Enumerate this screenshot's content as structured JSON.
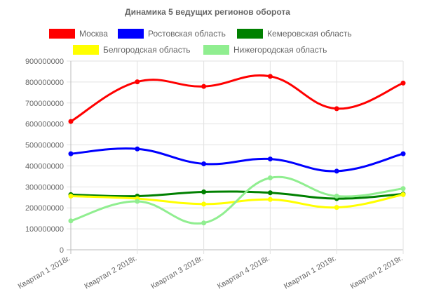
{
  "chart_data": {
    "type": "line",
    "title": "Динамика 5 ведущих регионов оборота",
    "categories": [
      "Квартал 1 2018г.",
      "Квартал 2 2018г.",
      "Квартал 3 2018г.",
      "Квартал 4 2018г.",
      "Квартал 1 2019г.",
      "Квартал 2 2019г."
    ],
    "ylim": [
      0,
      900000000
    ],
    "yticks": [
      "0",
      "100000000",
      "200000000",
      "300000000",
      "400000000",
      "500000000",
      "600000000",
      "700000000",
      "800000000",
      "900000000"
    ],
    "grid": true,
    "legend_position": "top",
    "series": [
      {
        "name": "Москва",
        "color": "#ff0000",
        "values": [
          612000000,
          801000000,
          779000000,
          827000000,
          673000000,
          795000000
        ]
      },
      {
        "name": "Ростовская область",
        "color": "#0000ff",
        "values": [
          458000000,
          481000000,
          410000000,
          433000000,
          375000000,
          458000000
        ]
      },
      {
        "name": "Кемеровская область",
        "color": "#008000",
        "values": [
          263000000,
          256000000,
          276000000,
          272000000,
          244000000,
          266000000
        ]
      },
      {
        "name": "Белгородская область",
        "color": "#ffff00",
        "values": [
          256000000,
          244000000,
          218000000,
          240000000,
          202000000,
          263000000
        ]
      },
      {
        "name": "Нижегородская область",
        "color": "#90ee90",
        "values": [
          138000000,
          231000000,
          128000000,
          343000000,
          256000000,
          292000000
        ]
      }
    ]
  }
}
